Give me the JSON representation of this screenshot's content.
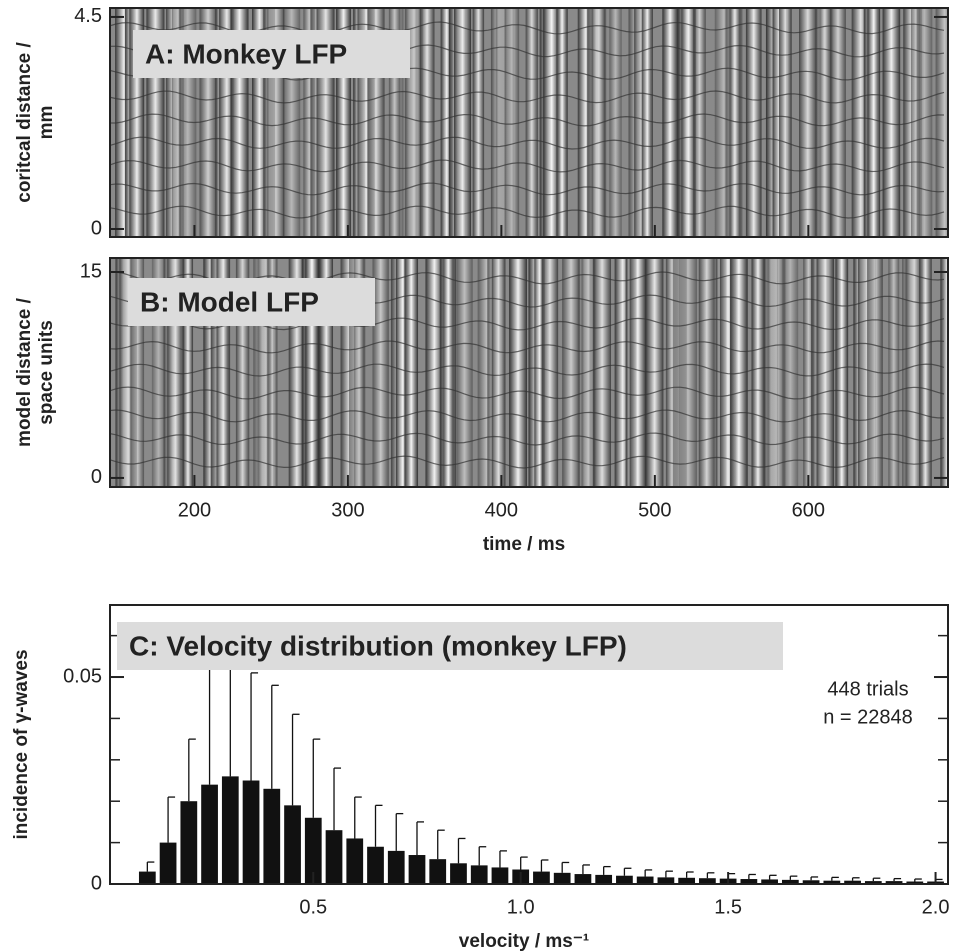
{
  "chart_data": [
    {
      "type": "heatmap",
      "title": "A: Monkey LFP",
      "ylabel": [
        "coritcal distance /",
        "mm"
      ],
      "ylim": [
        -0.17,
        4.69
      ],
      "yticks": [
        0,
        4.5
      ]
    },
    {
      "type": "heatmap",
      "title": "B: Model LFP",
      "ylabel": [
        "model distance /",
        "space units"
      ],
      "ylim": [
        -0.66,
        16.02
      ],
      "yticks": [
        0,
        15
      ],
      "xlabel": "time / ms",
      "xlim": [
        145,
        691
      ],
      "xticks": [
        200,
        300,
        400,
        500,
        600
      ]
    },
    {
      "type": "histogram",
      "title": "C: Velocity distribution (monkey LFP)",
      "ylabel": [
        "incidence of γ-waves"
      ],
      "xlabel": "velocity / ms⁻¹",
      "annotations": [
        "448 trials",
        "n = 22848"
      ],
      "color": "#111111",
      "xlim": [
        0.01,
        2.03
      ],
      "xticks": [
        0.5,
        {
          "value": 1,
          "label": "1.0"
        },
        1.5,
        {
          "value": 2,
          "label": "2.0"
        }
      ],
      "ylim": [
        0,
        0.0674
      ],
      "yticks": [
        0,
        0.05
      ],
      "yminor_ticks": [
        0.01,
        0.02,
        0.03,
        0.04,
        0.06
      ],
      "bins": [
        0.075,
        0.125,
        0.175,
        0.225,
        0.275,
        0.325,
        0.375,
        0.425,
        0.475,
        0.525,
        0.575,
        0.625,
        0.675,
        0.725,
        0.775,
        0.825,
        0.875,
        0.925,
        0.975,
        1.025,
        1.075,
        1.125,
        1.175,
        1.225,
        1.275,
        1.325,
        1.375,
        1.425,
        1.475,
        1.525,
        1.575,
        1.625,
        1.675,
        1.725,
        1.775,
        1.825,
        1.875,
        1.925,
        1.975,
        2.025
      ],
      "values": [
        0.003,
        0.01,
        0.02,
        0.024,
        0.026,
        0.025,
        0.023,
        0.019,
        0.016,
        0.013,
        0.011,
        0.009,
        0.008,
        0.007,
        0.006,
        0.005,
        0.0045,
        0.004,
        0.0035,
        0.003,
        0.0027,
        0.0024,
        0.0022,
        0.002,
        0.0018,
        0.0016,
        0.0015,
        0.0014,
        0.0013,
        0.0012,
        0.0011,
        0.001,
        0.0009,
        0.0008,
        0.0008,
        0.0007,
        0.0007,
        0.0006,
        0.0006
      ],
      "errors": [
        0.0023,
        0.011,
        0.015,
        0.028,
        0.029,
        0.026,
        0.025,
        0.022,
        0.019,
        0.015,
        0.01,
        0.01,
        0.009,
        0.008,
        0.007,
        0.006,
        0.0045,
        0.004,
        0.003,
        0.0028,
        0.0025,
        0.0022,
        0.002,
        0.0018,
        0.0016,
        0.0015,
        0.0014,
        0.0013,
        0.0012,
        0.0011,
        0.001,
        0.0009,
        0.0008,
        0.0008,
        0.0007,
        0.0007,
        0.0006,
        0.0006,
        0.0005
      ]
    }
  ]
}
